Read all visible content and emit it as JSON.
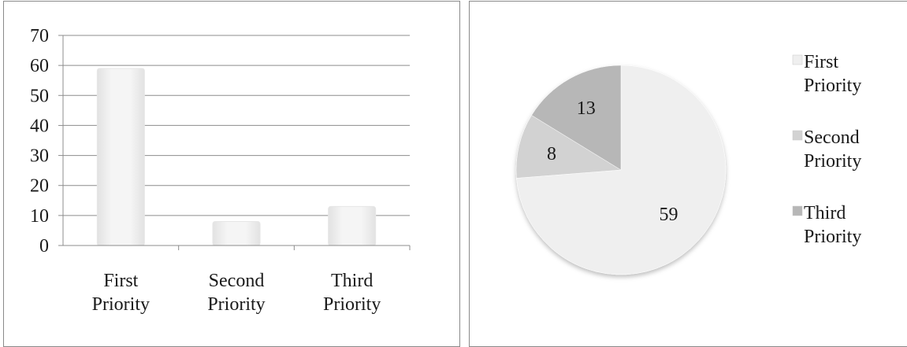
{
  "chart_data": [
    {
      "type": "bar",
      "categories": [
        [
          "First",
          "Priority"
        ],
        [
          "Second",
          "Priority"
        ],
        [
          "Third",
          "Priority"
        ]
      ],
      "values": [
        59,
        8,
        13
      ],
      "ylim": [
        0,
        70
      ],
      "yticks": [
        0,
        10,
        20,
        30,
        40,
        50,
        60,
        70
      ],
      "grid": true,
      "bar_color": "#f0f0f0"
    },
    {
      "type": "pie",
      "labels": [
        [
          "First",
          "Priority"
        ],
        [
          "Second",
          "Priority"
        ],
        [
          "Third",
          "Priority"
        ]
      ],
      "values": [
        59,
        8,
        13
      ],
      "colors": [
        "#efefef",
        "#d2d2d2",
        "#b7b7b7"
      ],
      "legend_position": "right"
    }
  ]
}
